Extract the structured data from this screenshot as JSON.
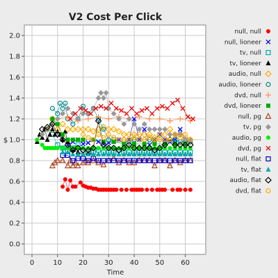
{
  "chart_data": {
    "type": "line",
    "title": "V2 Cost Per Click",
    "xlabel": "Time",
    "ylabel": "$",
    "xlim": [
      -3,
      68
    ],
    "ylim": [
      -0.1,
      2.1
    ],
    "xticks": [
      0,
      10,
      20,
      30,
      40,
      50,
      60
    ],
    "yticks": [
      0.0,
      0.2,
      0.4,
      0.6,
      0.8,
      1.0,
      1.2,
      1.4,
      1.6,
      1.8,
      2.0
    ],
    "grid": true,
    "legend_position": "right",
    "series": [
      {
        "name": "null, null",
        "color": "#ff0000",
        "marker": "circle-filled",
        "x": [
          12,
          13,
          14,
          15,
          16,
          17,
          19,
          20,
          21,
          22,
          23,
          24,
          25,
          26,
          27,
          28,
          29,
          30,
          31,
          32,
          33,
          35,
          37,
          39,
          40,
          41,
          42,
          43,
          45,
          47,
          49,
          50,
          51,
          52,
          55,
          57,
          58,
          60,
          62
        ],
        "y": [
          0.55,
          0.62,
          0.52,
          0.61,
          0.55,
          0.55,
          0.59,
          0.56,
          0.55,
          0.54,
          0.54,
          0.53,
          0.53,
          0.52,
          0.52,
          0.52,
          0.52,
          0.52,
          0.52,
          0.52,
          0.52,
          0.52,
          0.52,
          0.52,
          0.52,
          0.52,
          0.52,
          0.52,
          0.52,
          0.52,
          0.52,
          0.52,
          0.52,
          0.52,
          0.52,
          0.52,
          0.52,
          0.52,
          0.52
        ]
      },
      {
        "name": "null, lioneer",
        "color": "#0000ff",
        "marker": "x",
        "x": [
          14,
          16,
          18,
          20,
          22,
          24,
          26,
          28,
          30,
          32,
          34,
          36,
          38,
          40,
          42,
          44,
          46,
          48,
          50,
          52,
          54,
          56,
          58,
          60,
          62
        ],
        "y": [
          0.95,
          0.98,
          1.0,
          0.96,
          0.97,
          1.0,
          0.98,
          0.96,
          0.97,
          0.98,
          1.0,
          0.96,
          1.0,
          1.2,
          1.0,
          1.1,
          0.95,
          1.0,
          1.05,
          1.0,
          0.98,
          1.0,
          1.1,
          1.0,
          0.98
        ]
      },
      {
        "name": "tv, null",
        "color": "#00aaaa",
        "marker": "square-open",
        "x": [
          8,
          10,
          12,
          14,
          16,
          18,
          20,
          22,
          24,
          26,
          28,
          30,
          32,
          34,
          36,
          38,
          40,
          42,
          44,
          46,
          48,
          50,
          52,
          54,
          56,
          58,
          60,
          62
        ],
        "y": [
          1.05,
          0.95,
          0.92,
          0.9,
          0.92,
          0.95,
          0.9,
          0.88,
          0.88,
          0.9,
          0.88,
          0.88,
          0.88,
          0.9,
          0.88,
          0.88,
          0.88,
          0.88,
          0.88,
          0.88,
          0.88,
          0.88,
          0.88,
          0.88,
          0.88,
          0.88,
          0.88,
          0.88
        ]
      },
      {
        "name": "tv, lioneer",
        "color": "#000000",
        "marker": "triangle-filled",
        "x": [
          2,
          3,
          4,
          5,
          6,
          7,
          8,
          9,
          10,
          11,
          12,
          13,
          14,
          16,
          18,
          20,
          22,
          24,
          26,
          28,
          30,
          32,
          34,
          36,
          38,
          40,
          42,
          44,
          46,
          48,
          50,
          52,
          54,
          56,
          58,
          60,
          62
        ],
        "y": [
          0.98,
          1.05,
          1.02,
          1.1,
          1.0,
          1.05,
          1.1,
          1.05,
          1.08,
          1.05,
          1.0,
          1.08,
          0.98,
          0.9,
          0.88,
          0.86,
          0.87,
          0.86,
          0.86,
          0.86,
          0.86,
          0.86,
          0.86,
          0.86,
          0.86,
          0.86,
          0.86,
          0.86,
          0.86,
          0.86,
          0.86,
          0.86,
          0.86,
          0.86,
          0.86,
          0.86,
          0.86
        ]
      },
      {
        "name": "audio, null",
        "color": "#ffaa00",
        "marker": "diamond-open",
        "x": [
          6,
          8,
          10,
          12,
          14,
          16,
          18,
          20,
          22,
          24,
          26,
          28,
          30,
          32,
          34,
          36,
          38,
          40,
          42,
          44,
          46,
          48,
          50,
          52,
          54,
          56,
          58,
          60,
          62
        ],
        "y": [
          1.1,
          1.2,
          1.1,
          1.15,
          1.1,
          1.1,
          1.1,
          1.1,
          1.1,
          1.08,
          1.1,
          1.12,
          1.1,
          1.1,
          1.08,
          1.05,
          1.05,
          1.05,
          1.05,
          1.05,
          1.05,
          1.02,
          1.05,
          1.05,
          1.1,
          1.05,
          1.05,
          1.0,
          1.0
        ]
      },
      {
        "name": "audio, lioneer",
        "color": "#008888",
        "marker": "circle-open",
        "x": [
          8,
          10,
          11,
          12,
          13,
          14,
          16,
          18,
          20,
          22,
          24,
          26,
          28,
          30,
          32,
          34,
          36,
          38,
          40,
          42,
          44,
          46,
          48,
          50,
          52,
          54,
          56,
          58,
          60,
          62
        ],
        "y": [
          1.3,
          1.25,
          1.35,
          1.3,
          1.35,
          1.2,
          1.15,
          1.2,
          1.32,
          1.25,
          1.3,
          1.2,
          1.1,
          1.0,
          1.0,
          1.0,
          1.0,
          0.98,
          1.0,
          1.0,
          1.0,
          1.0,
          1.0,
          1.0,
          1.0,
          1.0,
          1.0,
          0.98,
          0.98,
          0.98
        ]
      },
      {
        "name": "dvd, null",
        "color": "#ff8844",
        "marker": "plus",
        "x": [
          10,
          14,
          18,
          22,
          26,
          30,
          34,
          38,
          42,
          46,
          50,
          54,
          58,
          62
        ],
        "y": [
          1.2,
          1.22,
          1.18,
          1.2,
          1.22,
          1.2,
          1.22,
          1.2,
          1.22,
          1.2,
          1.2,
          1.18,
          1.2,
          1.18
        ]
      },
      {
        "name": "dvd, lioneer",
        "color": "#00aa00",
        "marker": "square-filled",
        "x": [
          6,
          8,
          10,
          12,
          14,
          16,
          18,
          20,
          24,
          28,
          32,
          36,
          40,
          44,
          48,
          52,
          56,
          60
        ],
        "y": [
          1.1,
          1.2,
          1.15,
          1.05,
          1.0,
          1.0,
          1.0,
          1.0,
          1.0,
          0.98,
          0.98,
          0.96,
          0.96,
          0.96,
          0.96,
          0.96,
          0.96,
          0.96
        ]
      },
      {
        "name": "null, pg",
        "color": "#aa4422",
        "marker": "triangle-open",
        "x": [
          8,
          9,
          10,
          12,
          14,
          15,
          16,
          17,
          18,
          20,
          21,
          22,
          24,
          26,
          28,
          30,
          32,
          34,
          36,
          38,
          40,
          42,
          44,
          46,
          48,
          50,
          52,
          54,
          56,
          58,
          60,
          62
        ],
        "y": [
          0.75,
          0.78,
          0.8,
          0.8,
          0.75,
          0.8,
          0.75,
          0.78,
          0.75,
          0.78,
          0.8,
          0.78,
          0.8,
          0.78,
          0.76,
          0.8,
          0.82,
          0.78,
          0.8,
          0.78,
          0.78,
          0.8,
          0.8,
          0.8,
          0.75,
          0.8,
          0.8,
          0.75,
          0.8,
          0.78,
          0.8,
          0.8
        ]
      },
      {
        "name": "tv, pg",
        "color": "#999999",
        "marker": "diamond-filled",
        "x": [
          4,
          6,
          8,
          10,
          12,
          14,
          16,
          18,
          20,
          22,
          24,
          26,
          27,
          28,
          29,
          30,
          32,
          34,
          36,
          38,
          40,
          42,
          44,
          46,
          48,
          50,
          52,
          54,
          56,
          58,
          60,
          62
        ],
        "y": [
          1.05,
          1.1,
          1.15,
          1.2,
          1.25,
          1.3,
          1.25,
          1.2,
          1.25,
          1.25,
          1.3,
          1.4,
          1.45,
          1.4,
          1.45,
          1.3,
          1.25,
          1.2,
          1.15,
          1.2,
          1.15,
          1.1,
          1.15,
          1.1,
          1.1,
          1.1,
          1.1,
          1.05,
          1.05,
          1.05,
          1.0,
          1.0
        ]
      },
      {
        "name": "audio, pg",
        "color": "#00ee00",
        "marker": "circle-filled",
        "x": [
          2,
          4,
          5,
          6,
          7,
          8,
          9,
          10,
          12,
          14,
          16,
          18,
          20,
          22,
          24,
          26,
          28,
          30,
          32,
          34,
          36,
          38,
          40,
          42,
          44,
          46,
          48,
          50,
          52,
          54,
          56,
          58,
          60,
          62
        ],
        "y": [
          1.0,
          0.95,
          0.92,
          0.92,
          0.92,
          0.92,
          0.92,
          0.92,
          0.92,
          0.92,
          0.92,
          0.92,
          0.92,
          0.92,
          0.92,
          0.92,
          0.92,
          0.92,
          0.92,
          0.92,
          0.92,
          0.92,
          0.92,
          0.92,
          0.92,
          0.92,
          0.92,
          0.92,
          0.92,
          0.92,
          0.92,
          0.92,
          0.92,
          0.92
        ]
      },
      {
        "name": "dvd, pg",
        "color": "#ee0000",
        "marker": "x",
        "x": [
          15,
          17,
          19,
          21,
          23,
          25,
          27,
          29,
          31,
          33,
          35,
          37,
          39,
          41,
          43,
          45,
          47,
          49,
          51,
          53,
          55,
          57,
          59,
          61,
          63
        ],
        "y": [
          1.2,
          1.25,
          1.3,
          1.28,
          1.25,
          1.3,
          1.32,
          1.3,
          1.35,
          1.3,
          1.28,
          1.25,
          1.3,
          1.25,
          1.28,
          1.3,
          1.25,
          1.3,
          1.32,
          1.3,
          1.35,
          1.38,
          1.3,
          1.22,
          1.2
        ]
      },
      {
        "name": "null, flat",
        "color": "#0000cc",
        "marker": "square-open",
        "x": [
          12,
          14,
          16,
          18,
          20,
          22,
          24,
          26,
          28,
          30,
          32,
          34,
          36,
          38,
          40,
          42,
          44,
          46,
          48,
          50,
          52,
          54,
          56,
          58,
          60,
          62
        ],
        "y": [
          0.85,
          0.85,
          0.8,
          0.82,
          0.82,
          0.8,
          0.82,
          0.8,
          0.8,
          0.8,
          0.8,
          0.8,
          0.8,
          0.8,
          0.8,
          0.8,
          0.8,
          0.8,
          0.8,
          0.8,
          0.8,
          0.8,
          0.8,
          0.8,
          0.8,
          0.8
        ]
      },
      {
        "name": "tv, flat",
        "color": "#00aaaa",
        "marker": "triangle-filled",
        "x": [
          12,
          14,
          16,
          18,
          20,
          22,
          24,
          26,
          28,
          30,
          32,
          34,
          36,
          38,
          40,
          42,
          44,
          46,
          48,
          50,
          52,
          54,
          56,
          58,
          60,
          62
        ],
        "y": [
          0.88,
          0.88,
          0.86,
          0.86,
          0.86,
          0.86,
          0.86,
          0.86,
          0.86,
          0.86,
          0.86,
          0.86,
          0.86,
          0.86,
          0.86,
          0.86,
          0.86,
          0.86,
          0.86,
          0.86,
          0.86,
          0.86,
          0.86,
          0.86,
          0.86,
          0.86
        ]
      },
      {
        "name": "audio, flat",
        "color": "#000000",
        "marker": "diamond-open",
        "x": [
          4,
          6,
          8,
          10,
          12,
          14,
          16,
          18,
          20,
          22,
          24,
          26,
          28,
          30,
          32,
          34,
          36,
          38,
          40,
          42,
          44,
          46,
          48,
          50,
          52,
          54,
          56,
          58,
          60,
          62
        ],
        "y": [
          1.1,
          1.12,
          1.15,
          1.05,
          1.0,
          0.95,
          0.9,
          0.92,
          0.9,
          0.9,
          0.92,
          1.18,
          0.95,
          0.92,
          0.92,
          0.9,
          0.92,
          0.95,
          0.92,
          0.92,
          0.92,
          0.92,
          0.9,
          0.92,
          0.95,
          1.0,
          0.95,
          0.95,
          0.95,
          0.95
        ]
      },
      {
        "name": "dvd, flat",
        "color": "#ffaa00",
        "marker": "circle-open",
        "x": [
          20,
          22,
          24,
          26,
          28,
          30,
          32,
          34,
          36,
          38,
          40,
          42,
          44,
          46,
          48,
          50,
          52,
          54,
          56,
          58,
          60,
          62
        ],
        "y": [
          1.05,
          1.02,
          1.0,
          1.05,
          1.02,
          1.05,
          1.02,
          1.0,
          1.0,
          1.0,
          1.02,
          1.0,
          1.0,
          1.02,
          1.0,
          1.0,
          1.0,
          1.0,
          1.05,
          1.02,
          1.05,
          1.0
        ]
      }
    ]
  }
}
